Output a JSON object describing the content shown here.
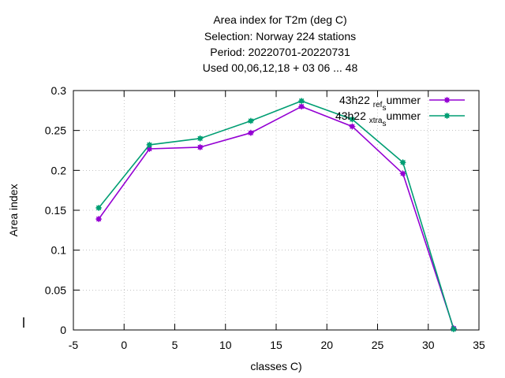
{
  "chart_data": {
    "type": "line",
    "title_lines": [
      "Area index  for T2m (deg C)",
      "Selection: Norway    224 stations",
      "Period: 20220701-20220731",
      "Used  00,06,12,18  + 03 06 ... 48"
    ],
    "xlabel": "classes C)",
    "ylabel": "Area index",
    "xlim": [
      -5,
      35
    ],
    "ylim": [
      0,
      0.3
    ],
    "xticks": [
      "-5",
      "0",
      "5",
      "10",
      "15",
      "20",
      "25",
      "30",
      "35"
    ],
    "yticks": [
      "0",
      "0.05",
      "0.1",
      "0.15",
      "0.2",
      "0.25",
      "0.3"
    ],
    "legend_position": "top-right",
    "grid": true,
    "series": [
      {
        "name": "43h22_ref_summer",
        "legend_parts": [
          "43h22 ",
          "ref",
          "s",
          "ummer"
        ],
        "color": "#9400d3",
        "x": [
          -2.5,
          2.5,
          7.5,
          12.5,
          17.5,
          22.5,
          27.5,
          32.5
        ],
        "y": [
          0.139,
          0.227,
          0.229,
          0.247,
          0.28,
          0.255,
          0.196,
          0.002
        ]
      },
      {
        "name": "43h22_xtra_summer",
        "legend_parts": [
          "43h22 ",
          "xtra",
          "s",
          "ummer"
        ],
        "color": "#009e73",
        "x": [
          -2.5,
          2.5,
          7.5,
          12.5,
          17.5,
          22.5,
          27.5,
          32.5
        ],
        "y": [
          0.153,
          0.232,
          0.24,
          0.262,
          0.287,
          0.264,
          0.21,
          0.001
        ]
      }
    ]
  }
}
